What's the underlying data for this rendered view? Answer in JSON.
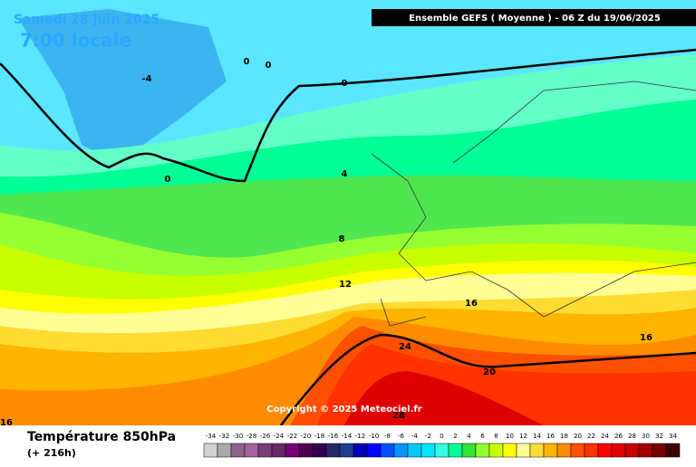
{
  "header": {
    "date": "Samedi 28 juin 2025",
    "time": "7:00 locale",
    "model": "Ensemble GEFS  ( Moyenne )  -  06 Z du 19/06/2025"
  },
  "contour_labels": [
    -4,
    0,
    0,
    0,
    0,
    4,
    8,
    12,
    16,
    16,
    20,
    24,
    28,
    16
  ],
  "copyright": "Copyright © 2025 Meteociel.fr",
  "legend": {
    "title": "Température 850hPa",
    "lead_time": "(+ 216h)",
    "scale": [
      {
        "value": -34,
        "color": "#d2d2d2"
      },
      {
        "value": -32,
        "color": "#aaaaaa"
      },
      {
        "value": -30,
        "color": "#8c648c"
      },
      {
        "value": -28,
        "color": "#a064a0"
      },
      {
        "value": -26,
        "color": "#783c78"
      },
      {
        "value": -24,
        "color": "#642864"
      },
      {
        "value": -22,
        "color": "#780078"
      },
      {
        "value": -20,
        "color": "#500050"
      },
      {
        "value": -18,
        "color": "#320050"
      },
      {
        "value": -16,
        "color": "#282864"
      },
      {
        "value": -14,
        "color": "#1e3c8c"
      },
      {
        "value": -12,
        "color": "#0000b4"
      },
      {
        "value": -10,
        "color": "#0000ff"
      },
      {
        "value": -8,
        "color": "#0050ff"
      },
      {
        "value": -6,
        "color": "#0096ff"
      },
      {
        "value": -4,
        "color": "#00c8ff"
      },
      {
        "value": -2,
        "color": "#00e6ff"
      },
      {
        "value": 0,
        "color": "#32ffe6"
      },
      {
        "value": 2,
        "color": "#00ff96"
      },
      {
        "value": 4,
        "color": "#32e632"
      },
      {
        "value": 6,
        "color": "#96ff32"
      },
      {
        "value": 8,
        "color": "#c8ff00"
      },
      {
        "value": 10,
        "color": "#ffff00"
      },
      {
        "value": 12,
        "color": "#ffff96"
      },
      {
        "value": 14,
        "color": "#ffdc32"
      },
      {
        "value": 16,
        "color": "#ffb400"
      },
      {
        "value": 18,
        "color": "#ff8c00"
      },
      {
        "value": 20,
        "color": "#ff5000"
      },
      {
        "value": 22,
        "color": "#ff3200"
      },
      {
        "value": 24,
        "color": "#ff0000"
      },
      {
        "value": 26,
        "color": "#e00000"
      },
      {
        "value": 28,
        "color": "#c80000"
      },
      {
        "value": 30,
        "color": "#a00000"
      },
      {
        "value": 32,
        "color": "#780000"
      },
      {
        "value": 34,
        "color": "#3c0000"
      }
    ]
  }
}
